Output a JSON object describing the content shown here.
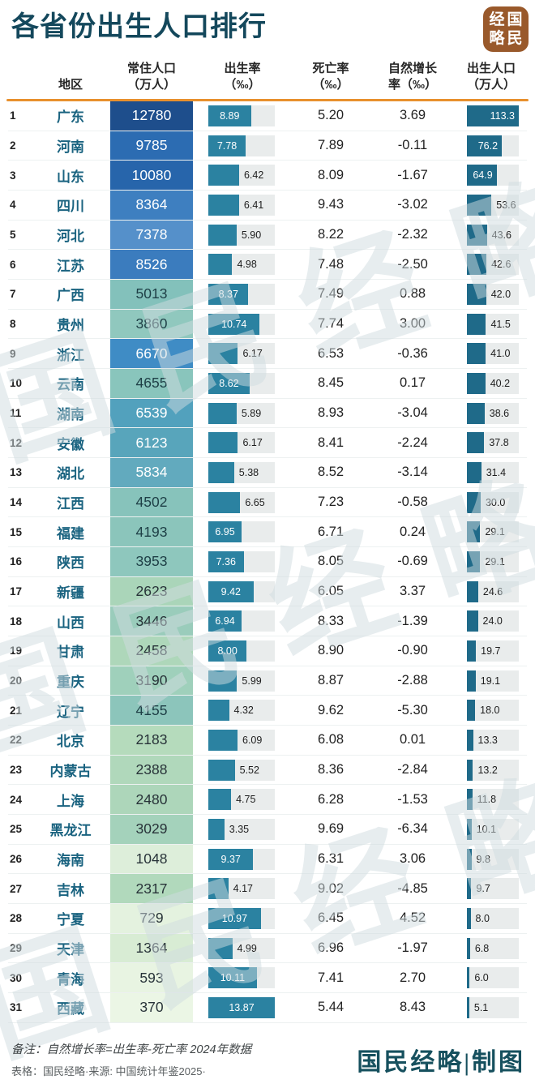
{
  "title": "各省份出生人口排行",
  "logo": {
    "brand": "国民经略",
    "grid": [
      [
        "经",
        "国"
      ],
      [
        "略",
        "民"
      ]
    ],
    "bg_color": "#99592b"
  },
  "columns": {
    "region": "地区",
    "population_l1": "常住人口",
    "population_l2": "（万人）",
    "birth_rate_l1": "出生率",
    "birth_rate_l2": "（‰）",
    "death_rate_l1": "死亡率",
    "death_rate_l2": "（‰）",
    "natural_l1": "自然增长",
    "natural_l2": "率（‰）",
    "births_l1": "出生人口",
    "births_l2": "（万人）"
  },
  "chart_data": {
    "type": "table",
    "title": "各省份出生人口排行",
    "legend_position": "none",
    "scales": {
      "birth_rate_max": 13.87,
      "births_max": 113.3
    },
    "colors": {
      "accent_rule": "#e8902d",
      "birth_rate_bar": "#2b82a1",
      "births_bar": "#1f6a89",
      "bar_track": "#e9ecec",
      "heatmap_high": "#1e4e8c",
      "heatmap_mid": "#87c3bb",
      "heatmap_low": "#ebf6e5",
      "title_color": "#14485c"
    },
    "rows": [
      {
        "rank": "1",
        "region": "广东",
        "pop": "12780",
        "birth_rate": "8.89",
        "death_rate": "5.20",
        "natural": "3.69",
        "births": "113.3",
        "pop_bg": "#1e4e8c",
        "pop_fg": "#ffffff"
      },
      {
        "rank": "2",
        "region": "河南",
        "pop": "9785",
        "birth_rate": "7.78",
        "death_rate": "7.89",
        "natural": "-0.11",
        "births": "76.2",
        "pop_bg": "#2c6cb2",
        "pop_fg": "#ffffff"
      },
      {
        "rank": "3",
        "region": "山东",
        "pop": "10080",
        "birth_rate": "6.42",
        "death_rate": "8.09",
        "natural": "-1.67",
        "births": "64.9",
        "pop_bg": "#2765ab",
        "pop_fg": "#ffffff"
      },
      {
        "rank": "4",
        "region": "四川",
        "pop": "8364",
        "birth_rate": "6.41",
        "death_rate": "9.43",
        "natural": "-3.02",
        "births": "53.6",
        "pop_bg": "#3e7fc0",
        "pop_fg": "#ffffff"
      },
      {
        "rank": "5",
        "region": "河北",
        "pop": "7378",
        "birth_rate": "5.90",
        "death_rate": "8.22",
        "natural": "-2.32",
        "births": "43.6",
        "pop_bg": "#5590ca",
        "pop_fg": "#ffffff"
      },
      {
        "rank": "6",
        "region": "江苏",
        "pop": "8526",
        "birth_rate": "4.98",
        "death_rate": "7.48",
        "natural": "-2.50",
        "births": "42.6",
        "pop_bg": "#3b7cbe",
        "pop_fg": "#ffffff"
      },
      {
        "rank": "7",
        "region": "广西",
        "pop": "5013",
        "birth_rate": "8.37",
        "death_rate": "7.49",
        "natural": "0.88",
        "births": "42.0",
        "pop_bg": "#83c1bb",
        "pop_fg": "#1e3f46"
      },
      {
        "rank": "8",
        "region": "贵州",
        "pop": "3860",
        "birth_rate": "10.74",
        "death_rate": "7.74",
        "natural": "3.00",
        "births": "41.5",
        "pop_bg": "#90c8be",
        "pop_fg": "#1e3f46"
      },
      {
        "rank": "9",
        "region": "浙江",
        "pop": "6670",
        "birth_rate": "6.17",
        "death_rate": "6.53",
        "natural": "-0.36",
        "births": "41.0",
        "pop_bg": "#3f8cc5",
        "pop_fg": "#ffffff"
      },
      {
        "rank": "10",
        "region": "云南",
        "pop": "4655",
        "birth_rate": "8.62",
        "death_rate": "8.45",
        "natural": "0.17",
        "births": "40.2",
        "pop_bg": "#89c5bc",
        "pop_fg": "#1e3f46"
      },
      {
        "rank": "11",
        "region": "湖南",
        "pop": "6539",
        "birth_rate": "5.89",
        "death_rate": "8.93",
        "natural": "-3.04",
        "births": "38.6",
        "pop_bg": "#52a1bd",
        "pop_fg": "#ffffff"
      },
      {
        "rank": "12",
        "region": "安徽",
        "pop": "6123",
        "birth_rate": "6.17",
        "death_rate": "8.41",
        "natural": "-2.24",
        "births": "37.8",
        "pop_bg": "#58a5bb",
        "pop_fg": "#ffffff"
      },
      {
        "rank": "13",
        "region": "湖北",
        "pop": "5834",
        "birth_rate": "5.38",
        "death_rate": "8.52",
        "natural": "-3.14",
        "births": "31.4",
        "pop_bg": "#62aabe",
        "pop_fg": "#ffffff"
      },
      {
        "rank": "14",
        "region": "江西",
        "pop": "4502",
        "birth_rate": "6.65",
        "death_rate": "7.23",
        "natural": "-0.58",
        "births": "30.0",
        "pop_bg": "#87c3bb",
        "pop_fg": "#1e3f46"
      },
      {
        "rank": "15",
        "region": "福建",
        "pop": "4193",
        "birth_rate": "6.95",
        "death_rate": "6.71",
        "natural": "0.24",
        "births": "29.1",
        "pop_bg": "#8bc5bb",
        "pop_fg": "#1e3f46"
      },
      {
        "rank": "16",
        "region": "陕西",
        "pop": "3953",
        "birth_rate": "7.36",
        "death_rate": "8.05",
        "natural": "-0.69",
        "births": "29.1",
        "pop_bg": "#8ec7bd",
        "pop_fg": "#1e3f46"
      },
      {
        "rank": "17",
        "region": "新疆",
        "pop": "2623",
        "birth_rate": "9.42",
        "death_rate": "6.05",
        "natural": "3.37",
        "births": "24.6",
        "pop_bg": "#aad5b9",
        "pop_fg": "#283339"
      },
      {
        "rank": "18",
        "region": "山西",
        "pop": "3446",
        "birth_rate": "6.94",
        "death_rate": "8.33",
        "natural": "-1.39",
        "births": "24.0",
        "pop_bg": "#9accbb",
        "pop_fg": "#283339"
      },
      {
        "rank": "19",
        "region": "甘肃",
        "pop": "2458",
        "birth_rate": "8.00",
        "death_rate": "8.90",
        "natural": "-0.90",
        "births": "19.7",
        "pop_bg": "#aed7ba",
        "pop_fg": "#283339"
      },
      {
        "rank": "20",
        "region": "重庆",
        "pop": "3190",
        "birth_rate": "5.99",
        "death_rate": "8.87",
        "natural": "-2.88",
        "births": "19.1",
        "pop_bg": "#9fd0bb",
        "pop_fg": "#283339"
      },
      {
        "rank": "21",
        "region": "辽宁",
        "pop": "4155",
        "birth_rate": "4.32",
        "death_rate": "9.62",
        "natural": "-5.30",
        "births": "18.0",
        "pop_bg": "#8cc5bb",
        "pop_fg": "#1e3f46"
      },
      {
        "rank": "22",
        "region": "北京",
        "pop": "2183",
        "birth_rate": "6.09",
        "death_rate": "6.08",
        "natural": "0.01",
        "births": "13.3",
        "pop_bg": "#b5dbbc",
        "pop_fg": "#283339"
      },
      {
        "rank": "23",
        "region": "内蒙古",
        "pop": "2388",
        "birth_rate": "5.52",
        "death_rate": "8.36",
        "natural": "-2.84",
        "births": "13.2",
        "pop_bg": "#b0d8bb",
        "pop_fg": "#283339"
      },
      {
        "rank": "24",
        "region": "上海",
        "pop": "2480",
        "birth_rate": "4.75",
        "death_rate": "6.28",
        "natural": "-1.53",
        "births": "11.8",
        "pop_bg": "#add6ba",
        "pop_fg": "#283339"
      },
      {
        "rank": "25",
        "region": "黑龙江",
        "pop": "3029",
        "birth_rate": "3.35",
        "death_rate": "9.69",
        "natural": "-6.34",
        "births": "10.1",
        "pop_bg": "#a4d2bb",
        "pop_fg": "#283339"
      },
      {
        "rank": "26",
        "region": "海南",
        "pop": "1048",
        "birth_rate": "9.37",
        "death_rate": "6.31",
        "natural": "3.06",
        "births": "9.8",
        "pop_bg": "#ddeeda",
        "pop_fg": "#283339"
      },
      {
        "rank": "27",
        "region": "吉林",
        "pop": "2317",
        "birth_rate": "4.17",
        "death_rate": "9.02",
        "natural": "-4.85",
        "births": "9.7",
        "pop_bg": "#b1d9bc",
        "pop_fg": "#283339"
      },
      {
        "rank": "28",
        "region": "宁夏",
        "pop": "729",
        "birth_rate": "10.97",
        "death_rate": "6.45",
        "natural": "4.52",
        "births": "8.0",
        "pop_bg": "#e4f2df",
        "pop_fg": "#283339"
      },
      {
        "rank": "29",
        "region": "天津",
        "pop": "1364",
        "birth_rate": "4.99",
        "death_rate": "6.96",
        "natural": "-1.97",
        "births": "6.8",
        "pop_bg": "#d8ecd4",
        "pop_fg": "#283339"
      },
      {
        "rank": "30",
        "region": "青海",
        "pop": "593",
        "birth_rate": "10.11",
        "death_rate": "7.41",
        "natural": "2.70",
        "births": "6.0",
        "pop_bg": "#e8f4e2",
        "pop_fg": "#283339"
      },
      {
        "rank": "31",
        "region": "西藏",
        "pop": "370",
        "birth_rate": "13.87",
        "death_rate": "5.44",
        "natural": "8.43",
        "births": "5.1",
        "pop_bg": "#ebf6e5",
        "pop_fg": "#283339"
      }
    ]
  },
  "watermark": {
    "text": "国民经略"
  },
  "footer": {
    "note": "备注：自然增长率=出生率-死亡率 2024年数据",
    "source": "表格：国民经略·来源: 中国统计年鉴2025·",
    "credit": "国民经略|制图"
  }
}
